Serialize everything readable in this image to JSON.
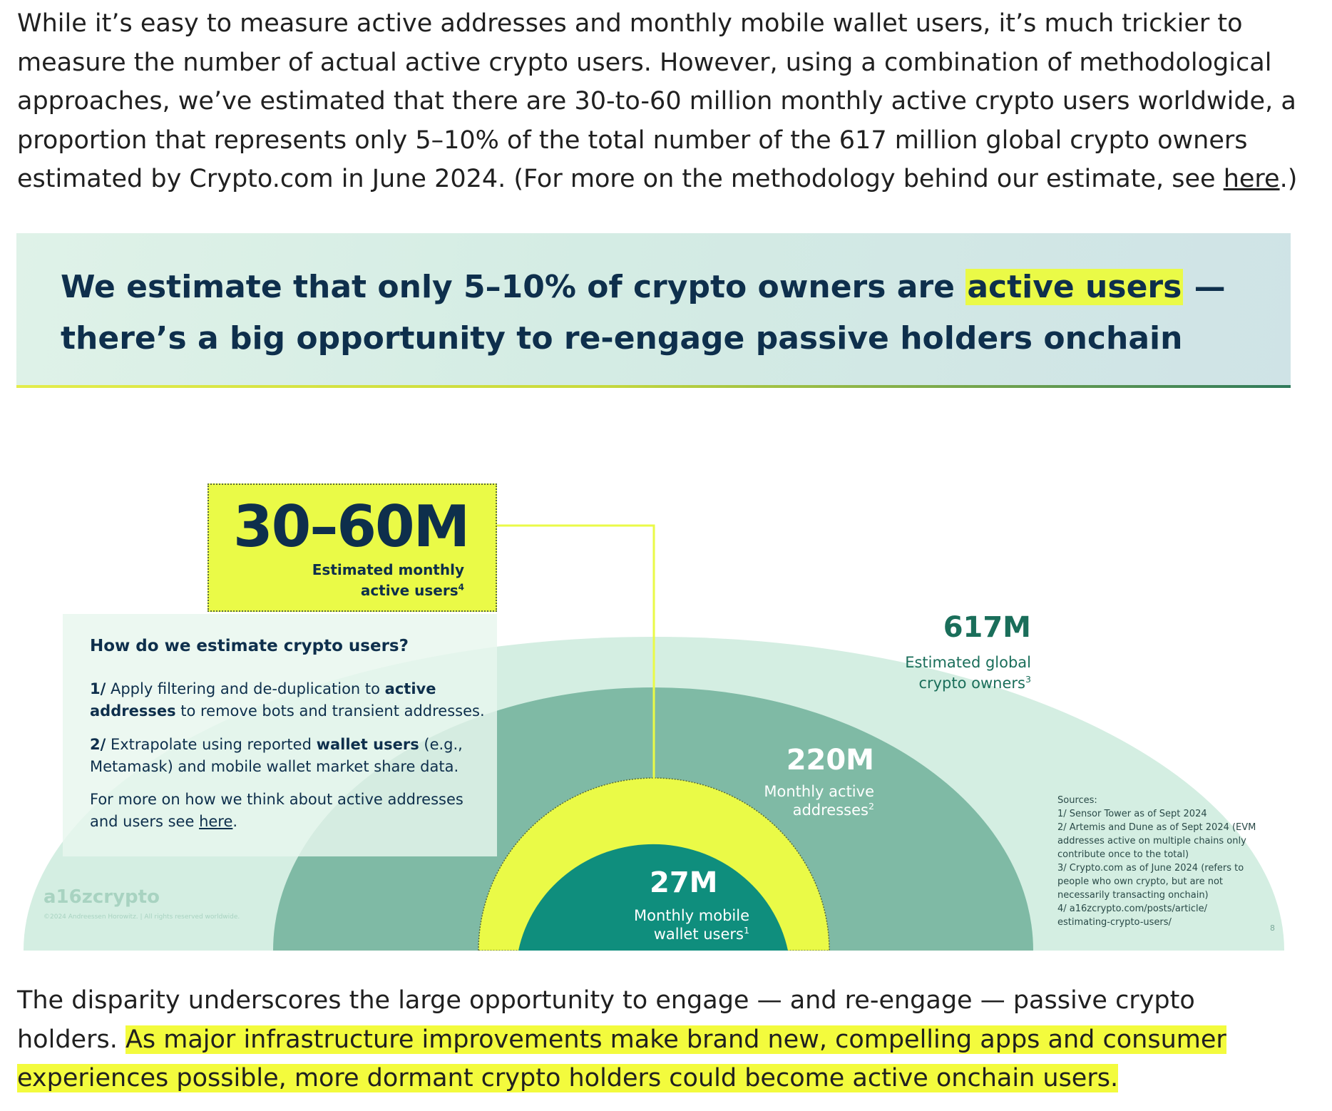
{
  "intro_paragraph": {
    "text": "While it’s easy to measure active addresses and monthly mobile wallet users, it’s much trickier to measure the number of actual active crypto users. However, using a combination of methodological approaches, we’ve estimated that there are 30-to-60 million monthly active crypto users worldwide, a proportion that represents only 5–10% of the total number of the 617 million global crypto owners estimated by Crypto.com in June 2024. (For more on the methodology behind our estimate, see ",
    "link": "here",
    "after_link": ".)"
  },
  "figure": {
    "title_line1_before": "We estimate that only 5–10% of crypto owners are ",
    "title_highlight": "active users",
    "title_line1_after": " —",
    "title_line2": "there’s a big opportunity to re-engage passive holders onchain",
    "callout": {
      "value": "30–60M",
      "label": "Estimated monthly active users",
      "sup": "4"
    },
    "method": {
      "title": "How do we estimate crypto users?",
      "step1_prefix": "1/",
      "step1_a": " Apply filtering and de-duplication to ",
      "step1_bold": "active addresses",
      "step1_b": " to remove bots and transient addresses.",
      "step2_prefix": "2/",
      "step2_a": " Extrapolate using reported ",
      "step2_bold": "wallet users",
      "step2_b": " (e.g., Metamask) and mobile wallet market share data.",
      "more_text": "For more on how we think about active addresses and users see ",
      "more_link": "here",
      "more_end": "."
    },
    "stats": [
      {
        "value": "617M",
        "label": "Estimated global crypto owners",
        "sup": "3"
      },
      {
        "value": "220M",
        "label": "Monthly active addresses",
        "sup": "2"
      },
      {
        "value": "27M",
        "label": "Monthly mobile wallet users",
        "sup": "1"
      }
    ],
    "sources": {
      "title": "Sources:",
      "items": [
        "1/ Sensor Tower as of Sept 2024",
        "2/ Artemis and Dune as of Sept 2024 (EVM addresses active on multiple chains only contribute once to the total)",
        "3/ Crypto.com as of June 2024 (refers to people who own crypto, but are not necessarily transacting onchain)",
        "4/ a16zcrypto.com/posts/article/ estimating-crypto-users/"
      ]
    },
    "logo": "a16zcrypto",
    "copyright": "©2024 Andreessen Horowitz. | All rights reserved worldwide.",
    "page_number": "8",
    "colors": {
      "outer_arc": "#d4eee2",
      "middle_arc": "#7fbaa5",
      "yellow_ring": "#eafa47",
      "inner_core": "#0f8e7d",
      "navy_text": "#0e2f4c",
      "highlight": "#eafa47"
    }
  },
  "closing_paragraph": {
    "text": "The disparity underscores the large opportunity to engage — and re-engage — passive crypto holders. ",
    "highlighted": "As major infrastructure improvements make brand new, compelling apps and consumer experiences possible, more dormant crypto holders could become active onchain users."
  }
}
